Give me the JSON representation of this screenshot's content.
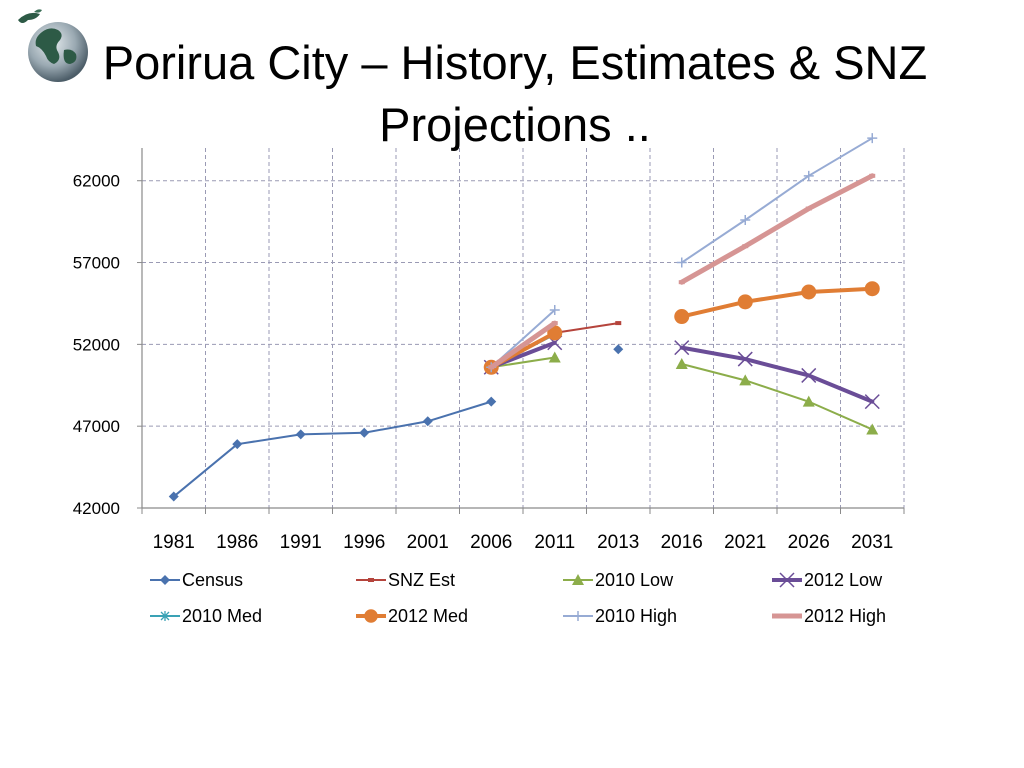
{
  "title": {
    "line1": "Porirua City – History, Estimates & SNZ",
    "line2": "Projections .."
  },
  "logo": {
    "icon": "globe-icon"
  },
  "chart_data": {
    "type": "line",
    "categories": [
      "1981",
      "1986",
      "1991",
      "1996",
      "2001",
      "2006",
      "2011",
      "2013",
      "2016",
      "2021",
      "2026",
      "2031"
    ],
    "ylim": [
      42000,
      64000
    ],
    "yticks": [
      42000,
      47000,
      52000,
      57000,
      62000
    ],
    "grid": true,
    "legend_position": "bottom",
    "series": [
      {
        "name": "Census",
        "color": "#4a72ae",
        "marker": "diamond",
        "width": 2,
        "values": [
          42700,
          45900,
          46500,
          46600,
          47300,
          48500,
          null,
          null,
          null,
          null,
          null,
          null
        ],
        "extra_points": [
          {
            "x": 7,
            "y": 51700
          }
        ]
      },
      {
        "name": "SNZ Est",
        "color": "#b5443c",
        "marker": "dash",
        "width": 2,
        "values": [
          null,
          null,
          null,
          null,
          null,
          50600,
          52700,
          53300,
          null,
          null,
          null,
          null
        ]
      },
      {
        "name": "2010 Low",
        "color": "#8cad4a",
        "marker": "triangle",
        "width": 2,
        "values": [
          null,
          null,
          null,
          null,
          null,
          50600,
          51200,
          null,
          50800,
          49800,
          48500,
          46800
        ]
      },
      {
        "name": "2012 Low",
        "color": "#6a4d97",
        "marker": "x",
        "width": 4,
        "values": [
          null,
          null,
          null,
          null,
          null,
          50600,
          52100,
          null,
          51800,
          51100,
          50100,
          48500
        ]
      },
      {
        "name": "2010 Med",
        "color": "#3aa2b5",
        "marker": "star",
        "width": 2,
        "values": [
          null,
          null,
          null,
          null,
          null,
          50600,
          52600,
          null,
          null,
          null,
          null,
          null
        ]
      },
      {
        "name": "2012 Med",
        "color": "#e07d34",
        "marker": "circle",
        "width": 4,
        "values": [
          null,
          null,
          null,
          null,
          null,
          50600,
          52700,
          null,
          53700,
          54600,
          55200,
          55400
        ]
      },
      {
        "name": "2010 High",
        "color": "#97abd4",
        "marker": "plus",
        "width": 2,
        "values": [
          null,
          null,
          null,
          null,
          null,
          50600,
          54100,
          null,
          57000,
          59600,
          62300,
          64600
        ]
      },
      {
        "name": "2012 High",
        "color": "#d69594",
        "marker": "dash",
        "width": 5,
        "values": [
          null,
          null,
          null,
          null,
          null,
          50600,
          53300,
          null,
          55800,
          58000,
          60300,
          62300
        ]
      }
    ]
  }
}
